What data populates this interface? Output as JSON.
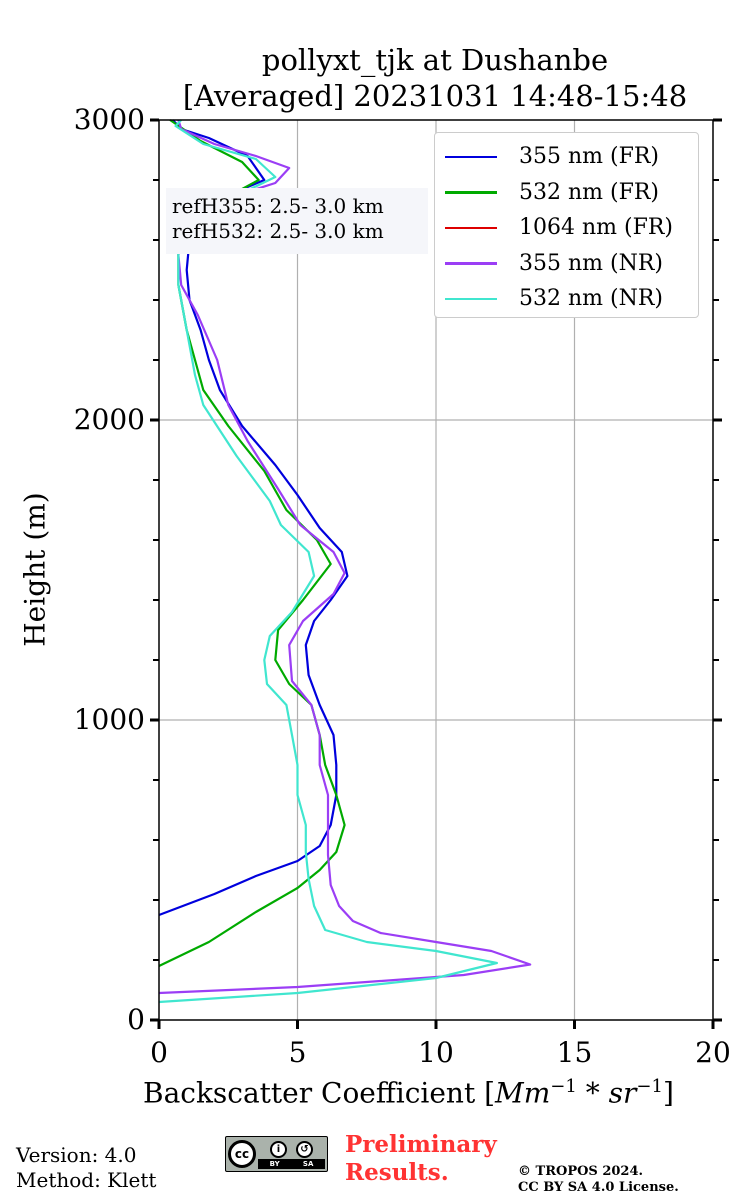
{
  "title_line1": "pollyxt_tjk at Dushanbe",
  "title_line2": "[Averaged] 20231031 14:48-15:48",
  "ref_info": [
    "refH355:  2.5- 3.0 km",
    "refH532:  2.5- 3.0 km"
  ],
  "footer": {
    "version": "Version: 4.0",
    "method": "Method: Klett",
    "preliminary_line1": "Preliminary",
    "preliminary_line2": "Results.",
    "copyright_line1": "© TROPOS 2024.",
    "copyright_line2": "CC BY SA 4.0 License.",
    "cc_badge": {
      "cc": "cc",
      "by": "BY",
      "sa": "SA"
    }
  },
  "chart_data": {
    "type": "line",
    "title": "pollyxt_tjk at Dushanbe [Averaged] 20231031 14:48-15:48",
    "xlabel": "Backscatter Coefficient [Mm^-1 * sr^-1]",
    "xlabel_text": "Backscatter Coefficient [",
    "xlabel_math": "Mm",
    "xlabel_exp1": "−1",
    "xlabel_mid": " * sr",
    "xlabel_exp2": "−1",
    "xlabel_close": "]",
    "ylabel": "Height (m)",
    "xlim": [
      0,
      20
    ],
    "ylim": [
      0,
      3000
    ],
    "xticks": [
      0,
      5,
      10,
      15,
      20
    ],
    "yticks": [
      0,
      1000,
      2000,
      3000
    ],
    "y_minor_step": 200,
    "grid": true,
    "legend_position": "top-right",
    "series": [
      {
        "name": "355 nm (FR)",
        "color": "#0000dd",
        "points": [
          [
            0,
            350
          ],
          [
            2,
            420
          ],
          [
            3.5,
            480
          ],
          [
            5,
            530
          ],
          [
            5.8,
            580
          ],
          [
            6.2,
            650
          ],
          [
            6.4,
            750
          ],
          [
            6.4,
            850
          ],
          [
            6.3,
            950
          ],
          [
            5.8,
            1050
          ],
          [
            5.4,
            1150
          ],
          [
            5.3,
            1250
          ],
          [
            5.6,
            1330
          ],
          [
            6.2,
            1400
          ],
          [
            6.8,
            1480
          ],
          [
            6.6,
            1560
          ],
          [
            5.8,
            1640
          ],
          [
            5.0,
            1750
          ],
          [
            4.2,
            1850
          ],
          [
            3.0,
            1980
          ],
          [
            2.2,
            2100
          ],
          [
            1.8,
            2200
          ],
          [
            1.5,
            2300
          ],
          [
            1.1,
            2400
          ],
          [
            1.0,
            2500
          ],
          [
            1.1,
            2600
          ],
          [
            1.5,
            2700
          ],
          [
            2.5,
            2750
          ],
          [
            3.8,
            2800
          ],
          [
            3.2,
            2880
          ],
          [
            1.8,
            2940
          ],
          [
            0.8,
            2970
          ],
          [
            0.5,
            3000
          ]
        ]
      },
      {
        "name": "532 nm (FR)",
        "color": "#00aa00",
        "points": [
          [
            0,
            180
          ],
          [
            1.8,
            260
          ],
          [
            3.5,
            360
          ],
          [
            5,
            440
          ],
          [
            5.8,
            500
          ],
          [
            6.4,
            560
          ],
          [
            6.7,
            650
          ],
          [
            6.4,
            750
          ],
          [
            6.0,
            850
          ],
          [
            5.8,
            950
          ],
          [
            5.5,
            1050
          ],
          [
            4.7,
            1120
          ],
          [
            4.2,
            1200
          ],
          [
            4.3,
            1300
          ],
          [
            5.2,
            1400
          ],
          [
            6.2,
            1520
          ],
          [
            5.7,
            1600
          ],
          [
            4.6,
            1700
          ],
          [
            3.8,
            1830
          ],
          [
            2.5,
            1980
          ],
          [
            1.6,
            2100
          ],
          [
            1.3,
            2200
          ],
          [
            1.0,
            2300
          ],
          [
            0.7,
            2450
          ],
          [
            0.7,
            2580
          ],
          [
            1.1,
            2660
          ],
          [
            2.2,
            2730
          ],
          [
            3.6,
            2800
          ],
          [
            3.0,
            2860
          ],
          [
            1.5,
            2930
          ],
          [
            0.4,
            3000
          ]
        ]
      },
      {
        "name": "1064 nm (FR)",
        "color": "#dd0000",
        "points": []
      },
      {
        "name": "355 nm (NR)",
        "color": "#9b3ef5",
        "points": [
          [
            0,
            90
          ],
          [
            5,
            110
          ],
          [
            11,
            150
          ],
          [
            13.4,
            185
          ],
          [
            12,
            230
          ],
          [
            10,
            260
          ],
          [
            8,
            290
          ],
          [
            7,
            330
          ],
          [
            6.5,
            380
          ],
          [
            6.2,
            450
          ],
          [
            6.1,
            550
          ],
          [
            6.1,
            650
          ],
          [
            6.1,
            750
          ],
          [
            5.8,
            850
          ],
          [
            5.8,
            950
          ],
          [
            5.5,
            1050
          ],
          [
            4.8,
            1130
          ],
          [
            4.7,
            1250
          ],
          [
            5.2,
            1330
          ],
          [
            6.3,
            1420
          ],
          [
            6.7,
            1490
          ],
          [
            6.3,
            1560
          ],
          [
            5.1,
            1650
          ],
          [
            4.3,
            1770
          ],
          [
            3.2,
            1930
          ],
          [
            2.5,
            2050
          ],
          [
            2.1,
            2200
          ],
          [
            1.4,
            2350
          ],
          [
            0.8,
            2450
          ],
          [
            0.7,
            2550
          ],
          [
            1.0,
            2650
          ],
          [
            2.5,
            2740
          ],
          [
            4.2,
            2790
          ],
          [
            4.7,
            2840
          ],
          [
            3.5,
            2880
          ],
          [
            2.0,
            2920
          ],
          [
            0.8,
            2970
          ],
          [
            0.7,
            3000
          ]
        ]
      },
      {
        "name": "532 nm (NR)",
        "color": "#40e6cf",
        "points": [
          [
            0,
            60
          ],
          [
            5,
            90
          ],
          [
            10,
            140
          ],
          [
            12.2,
            190
          ],
          [
            10,
            230
          ],
          [
            7.5,
            260
          ],
          [
            6,
            300
          ],
          [
            5.6,
            380
          ],
          [
            5.4,
            470
          ],
          [
            5.3,
            560
          ],
          [
            5.3,
            650
          ],
          [
            5.0,
            750
          ],
          [
            5.0,
            850
          ],
          [
            4.8,
            950
          ],
          [
            4.6,
            1050
          ],
          [
            3.9,
            1120
          ],
          [
            3.8,
            1200
          ],
          [
            4.0,
            1280
          ],
          [
            4.8,
            1360
          ],
          [
            5.6,
            1480
          ],
          [
            5.4,
            1560
          ],
          [
            4.4,
            1650
          ],
          [
            4.0,
            1730
          ],
          [
            2.8,
            1880
          ],
          [
            1.6,
            2050
          ],
          [
            1.3,
            2150
          ],
          [
            1.0,
            2300
          ],
          [
            0.7,
            2450
          ],
          [
            0.7,
            2560
          ],
          [
            0.8,
            2650
          ],
          [
            1.6,
            2720
          ],
          [
            3.3,
            2770
          ],
          [
            4.2,
            2810
          ],
          [
            3.5,
            2870
          ],
          [
            1.6,
            2920
          ],
          [
            0.6,
            2980
          ],
          [
            0.8,
            3000
          ]
        ]
      }
    ]
  }
}
